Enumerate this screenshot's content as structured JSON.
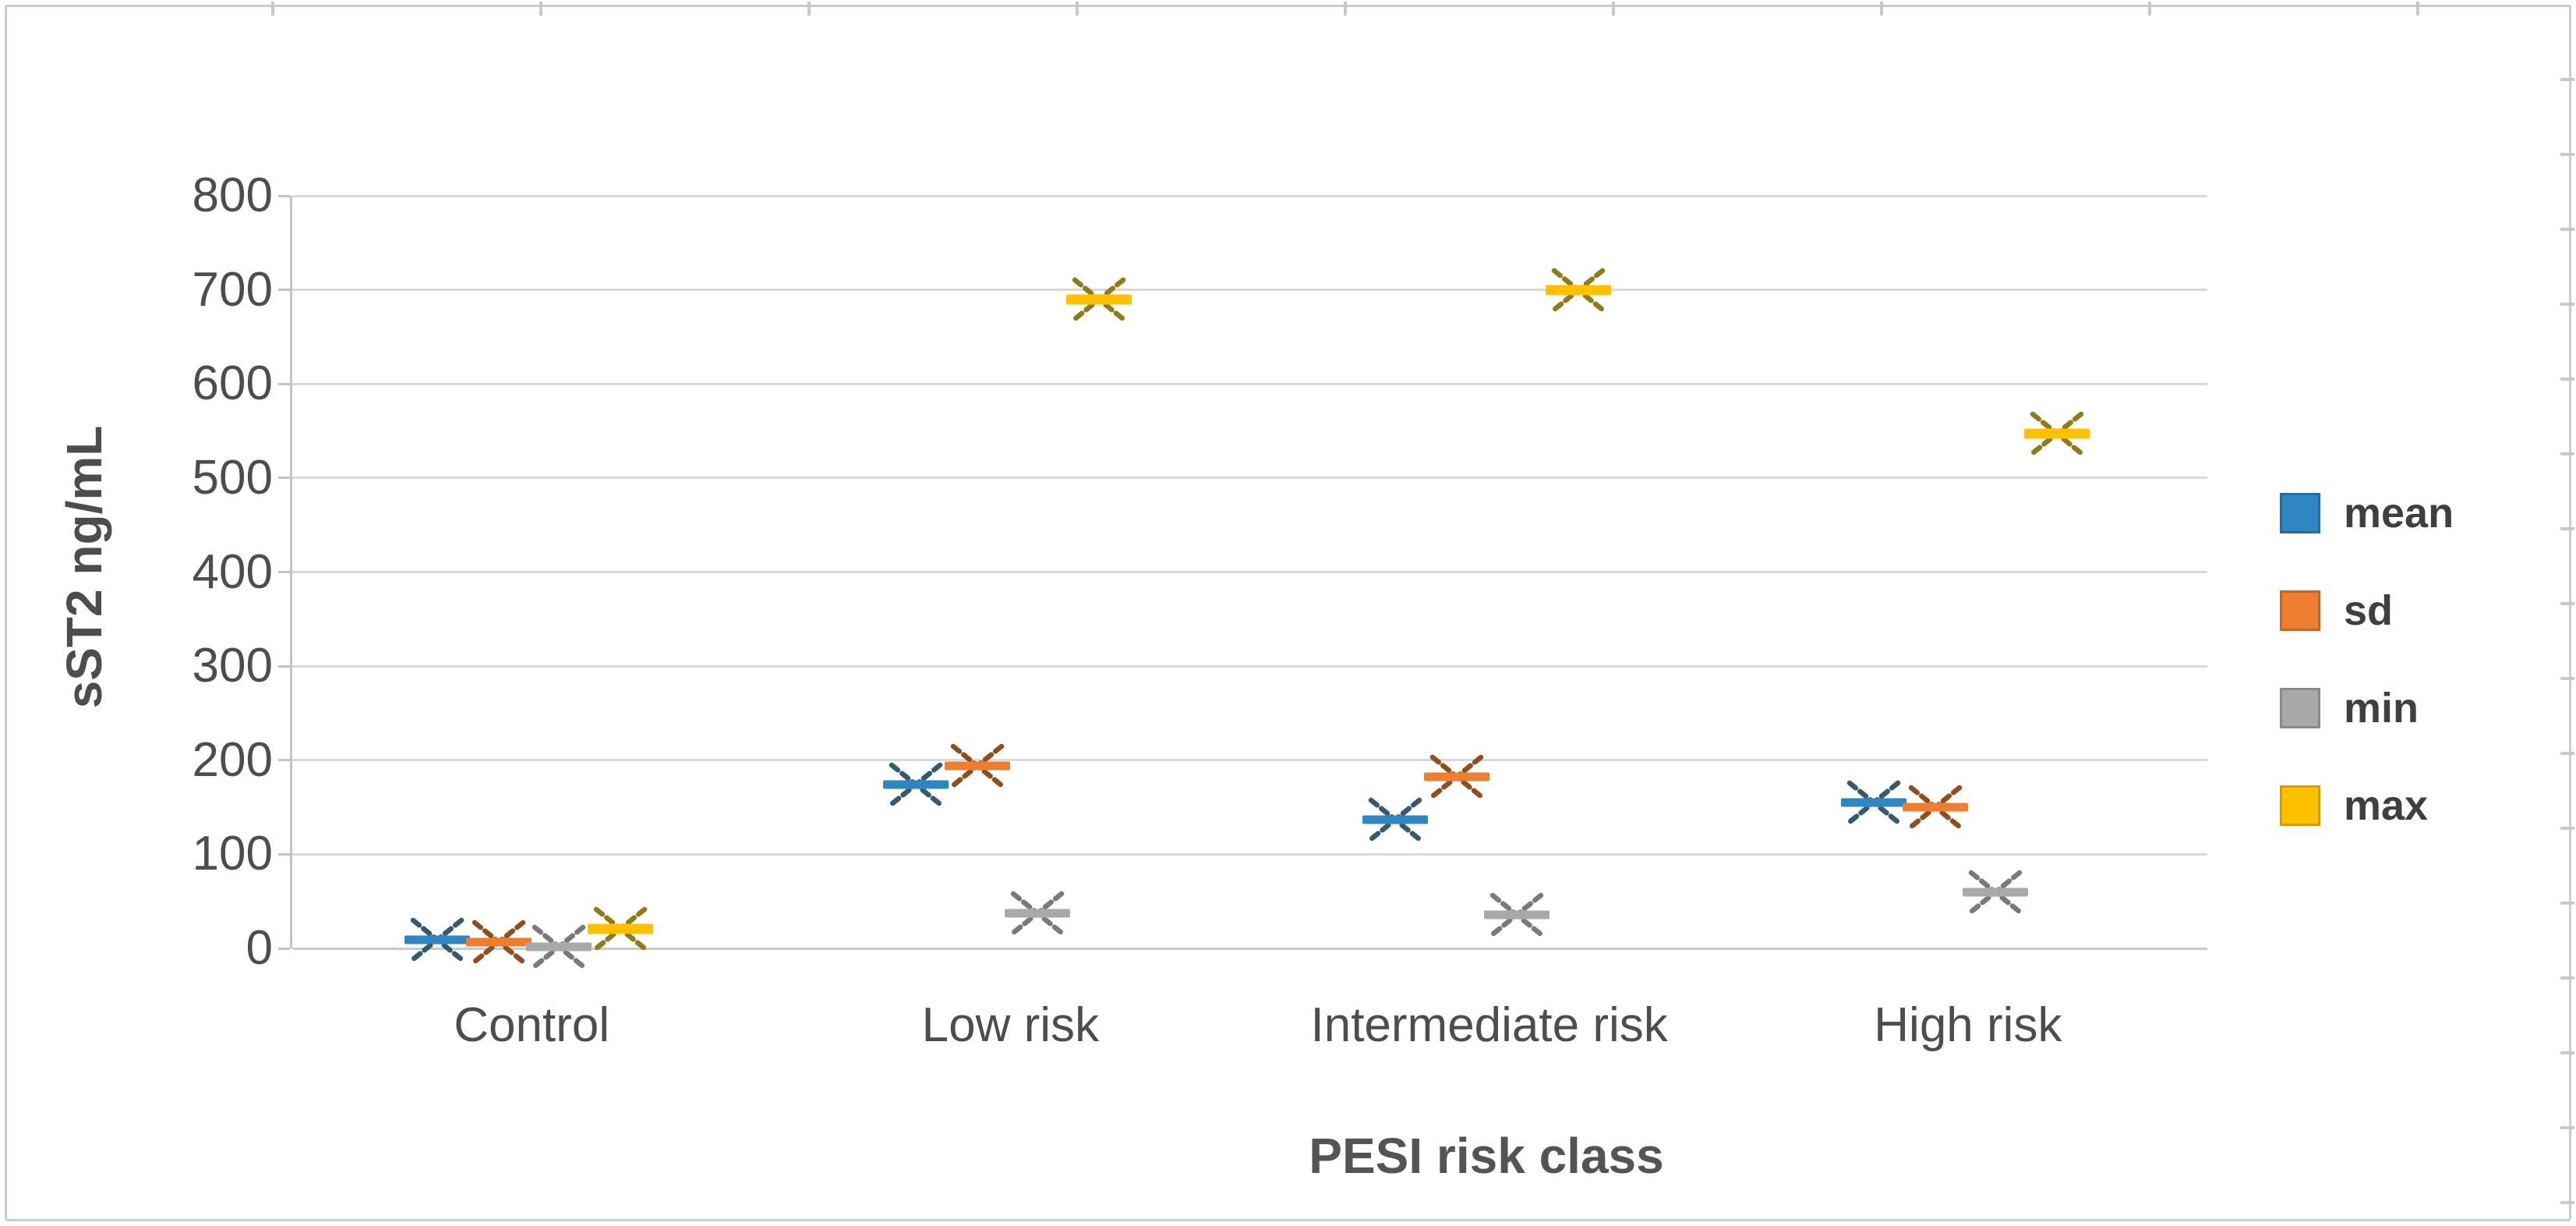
{
  "figure": {
    "background_color": "#ffffff",
    "border_color": "#cccccc",
    "gridline_color": "#d9d9d9",
    "axis_line_color": "#c3c3c3",
    "tick_label_color": "#4d4d4d",
    "title_color": "#545454"
  },
  "chart_data": {
    "type": "scatter",
    "title": "",
    "xlabel": "PESI risk class",
    "ylabel": "sST2 ng/mL",
    "categories": [
      "Control",
      "Low risk",
      "Intermediate risk",
      "High risk"
    ],
    "series": [
      {
        "name": "mean",
        "color": "#2E86C1",
        "diagonal_color": "#35596e",
        "values": [
          9,
          174,
          137,
          155
        ]
      },
      {
        "name": "sd",
        "color": "#ED7D31",
        "diagonal_color": "#8f4e1e",
        "values": [
          7,
          194,
          182,
          150
        ]
      },
      {
        "name": "min",
        "color": "#A9A9A9",
        "diagonal_color": "#7a7a7a",
        "values": [
          2,
          37,
          36,
          60
        ]
      },
      {
        "name": "max",
        "color": "#FFC000",
        "diagonal_color": "#8f7b1a",
        "values": [
          21,
          690,
          700,
          547
        ]
      }
    ],
    "ylim": [
      0,
      800
    ],
    "ytick_step": 100,
    "y_ticks": [
      "800",
      "700",
      "600",
      "500",
      "400",
      "300",
      "200",
      "100",
      "0"
    ],
    "grid": "horizontal",
    "legend_position": "right",
    "marker": "asterisk-6-point"
  }
}
